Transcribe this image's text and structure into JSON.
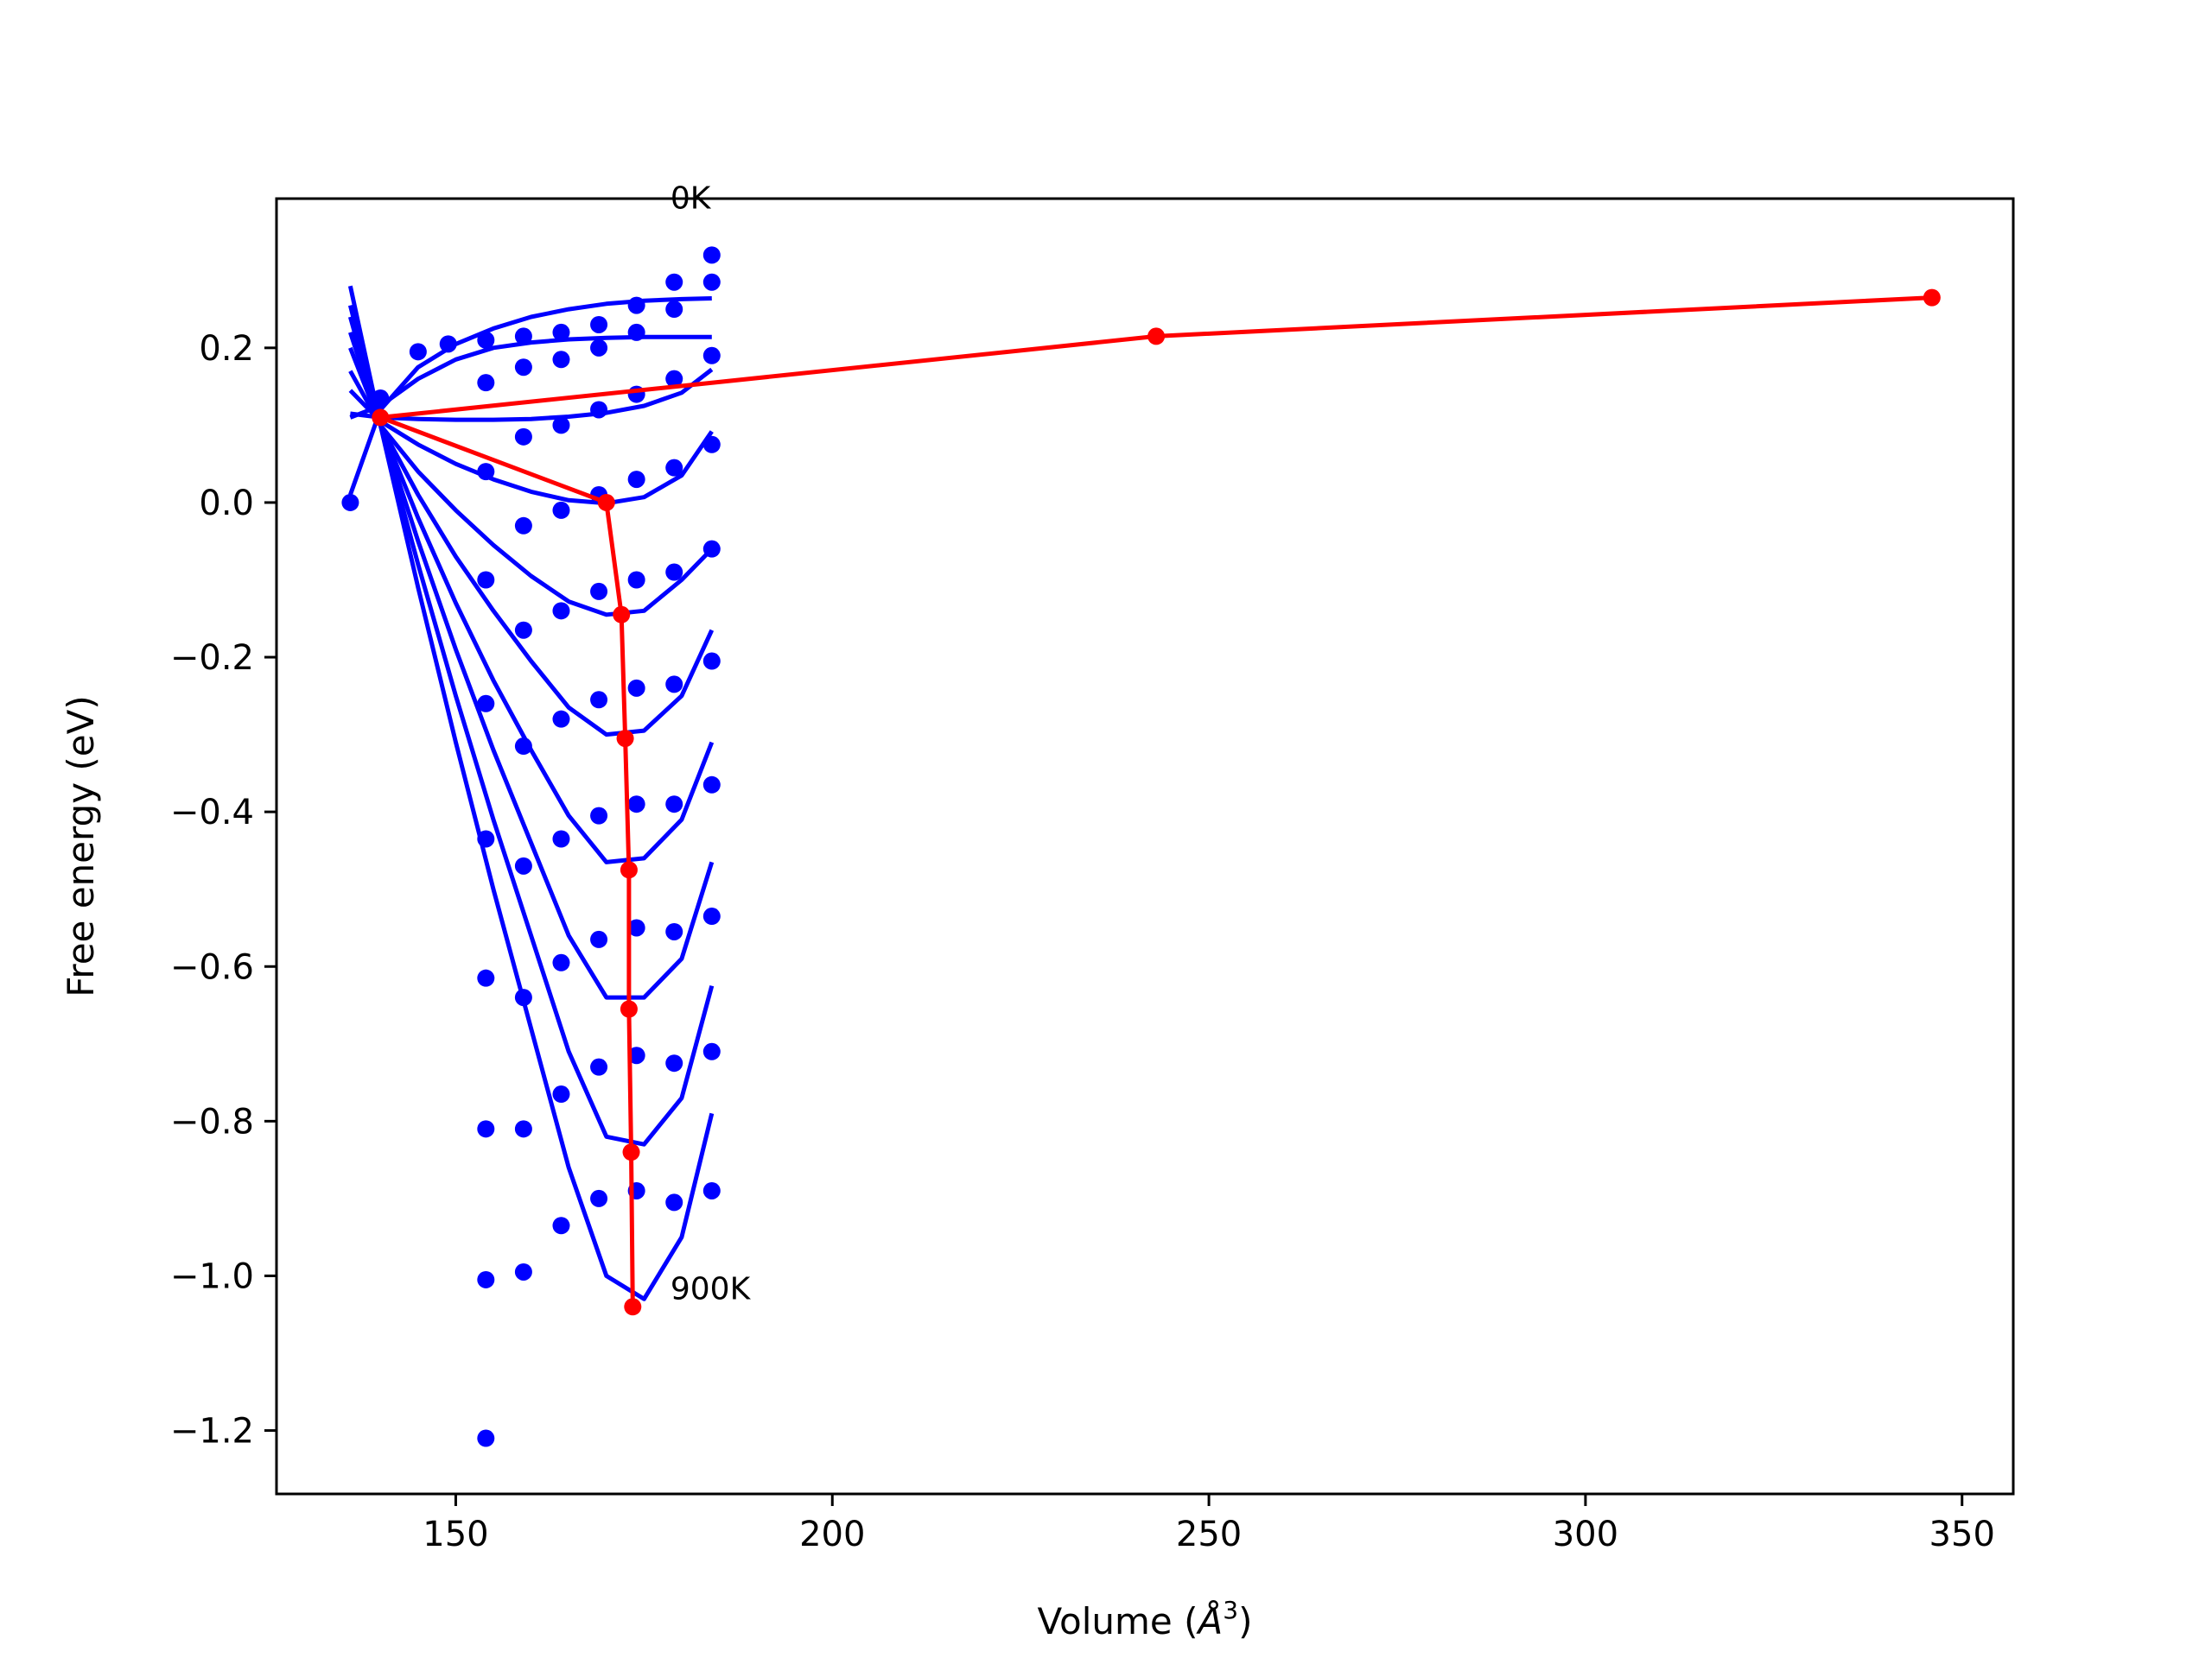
{
  "chart_data": {
    "type": "line",
    "xlabel_prefix": "Volume (",
    "xlabel_unit": "Å",
    "xlabel_exp": "3",
    "xlabel_suffix": ")",
    "ylabel": "Free energy (eV)",
    "xlim": [
      126.2,
      356.8
    ],
    "ylim": [
      -1.282,
      0.393
    ],
    "xticks": [
      150,
      200,
      250,
      300,
      350
    ],
    "xtick_labels": [
      "150",
      "200",
      "250",
      "300",
      "350"
    ],
    "yticks": [
      -1.2,
      -1.0,
      -0.8,
      -0.6,
      -0.4,
      -0.2,
      0.0,
      0.2
    ],
    "ytick_labels": [
      "−1.2",
      "−1.0",
      "−0.8",
      "−0.6",
      "−0.4",
      "−0.2",
      "0.0",
      "0.2"
    ],
    "grid": false,
    "colors": {
      "points": "#0000ff",
      "fits": "#0000ff",
      "minima": "#ff0000",
      "axes": "#000000"
    },
    "annotations": [
      {
        "text": "0K",
        "x": 178.5,
        "y": 0.38
      },
      {
        "text": "900K",
        "x": 178.5,
        "y": -1.03
      }
    ],
    "point_series": [
      {
        "x": [
          136,
          140,
          145,
          149,
          154,
          159,
          164,
          169,
          174,
          179,
          184
        ],
        "y": [
          0.0,
          0.135,
          0.195,
          0.205,
          0.21,
          0.215,
          0.22,
          0.23,
          0.255,
          0.285,
          0.32
        ]
      },
      {
        "x": [
          154,
          159,
          164,
          169,
          174,
          179,
          184
        ],
        "y": [
          0.155,
          0.175,
          0.185,
          0.2,
          0.22,
          0.25,
          0.285
        ]
      },
      {
        "x": [
          159,
          164,
          169,
          174,
          179,
          184
        ],
        "y": [
          0.085,
          0.1,
          0.12,
          0.14,
          0.16,
          0.19
        ]
      },
      {
        "x": [
          154,
          164,
          169,
          174,
          179,
          184
        ],
        "y": [
          0.04,
          -0.01,
          0.01,
          0.03,
          0.045,
          0.075
        ]
      },
      {
        "x": [
          154,
          159,
          169,
          174,
          179,
          184
        ],
        "y": [
          -0.1,
          -0.03,
          -0.115,
          -0.1,
          -0.09,
          -0.06
        ]
      },
      {
        "x": [
          154,
          159,
          164,
          169,
          174,
          179,
          184
        ],
        "y": [
          -0.26,
          -0.165,
          -0.14,
          -0.255,
          -0.24,
          -0.235,
          -0.205
        ]
      },
      {
        "x": [
          154,
          159,
          164,
          169,
          174,
          179,
          184
        ],
        "y": [
          -0.435,
          -0.315,
          -0.28,
          -0.405,
          -0.39,
          -0.39,
          -0.365
        ]
      },
      {
        "x": [
          154,
          159,
          164,
          169,
          174,
          179,
          184
        ],
        "y": [
          -0.615,
          -0.47,
          -0.435,
          -0.565,
          -0.55,
          -0.555,
          -0.535
        ]
      },
      {
        "x": [
          154,
          159,
          164,
          169,
          174,
          179,
          184
        ],
        "y": [
          -0.81,
          -0.64,
          -0.595,
          -0.73,
          -0.715,
          -0.725,
          -0.71
        ]
      },
      {
        "x": [
          154,
          159,
          164,
          169,
          174,
          179,
          184
        ],
        "y": [
          -1.005,
          -0.81,
          -0.765,
          -0.9,
          -0.89,
          -0.905,
          -0.89
        ]
      },
      {
        "x": [
          154,
          159,
          164
        ],
        "y": [
          -1.21,
          -0.995,
          -0.935
        ]
      }
    ],
    "fit_curves": [
      {
        "x": [
          136,
          140,
          145,
          150,
          155,
          160,
          165,
          170,
          175,
          180,
          184
        ],
        "y": [
          0.01,
          0.12,
          0.175,
          0.205,
          0.225,
          0.24,
          0.25,
          0.257,
          0.261,
          0.263,
          0.264
        ]
      },
      {
        "x": [
          136,
          140,
          145,
          150,
          155,
          160,
          165,
          170,
          175,
          180,
          184
        ],
        "y": [
          0.11,
          0.125,
          0.16,
          0.185,
          0.2,
          0.207,
          0.211,
          0.213,
          0.214,
          0.214,
          0.214
        ]
      },
      {
        "x": [
          136,
          140,
          145,
          150,
          155,
          160,
          165,
          170,
          175,
          180,
          184
        ],
        "y": [
          0.115,
          0.11,
          0.108,
          0.107,
          0.107,
          0.108,
          0.111,
          0.116,
          0.125,
          0.142,
          0.172
        ]
      },
      {
        "x": [
          136,
          140,
          145,
          150,
          155,
          160,
          165,
          170,
          175,
          180,
          184
        ],
        "y": [
          0.145,
          0.105,
          0.075,
          0.05,
          0.03,
          0.014,
          0.003,
          -0.001,
          0.007,
          0.035,
          0.092
        ]
      },
      {
        "x": [
          136,
          140,
          145,
          150,
          155,
          160,
          165,
          170,
          175,
          180,
          184
        ],
        "y": [
          0.17,
          0.1,
          0.04,
          -0.01,
          -0.055,
          -0.095,
          -0.128,
          -0.145,
          -0.14,
          -0.1,
          -0.06
        ]
      },
      {
        "x": [
          136,
          140,
          145,
          150,
          155,
          160,
          165,
          170,
          175,
          180,
          184
        ],
        "y": [
          0.2,
          0.1,
          0.01,
          -0.07,
          -0.14,
          -0.205,
          -0.265,
          -0.3,
          -0.295,
          -0.25,
          -0.165
        ]
      },
      {
        "x": [
          136,
          140,
          145,
          150,
          155,
          160,
          165,
          170,
          175,
          180,
          184
        ],
        "y": [
          0.22,
          0.1,
          -0.02,
          -0.13,
          -0.23,
          -0.32,
          -0.405,
          -0.465,
          -0.46,
          -0.41,
          -0.31
        ]
      },
      {
        "x": [
          136,
          140,
          145,
          150,
          155,
          160,
          165,
          170,
          175,
          180,
          184
        ],
        "y": [
          0.24,
          0.1,
          -0.05,
          -0.19,
          -0.32,
          -0.44,
          -0.56,
          -0.64,
          -0.64,
          -0.59,
          -0.465
        ]
      },
      {
        "x": [
          136,
          140,
          145,
          150,
          155,
          160,
          165,
          170,
          175,
          180,
          184
        ],
        "y": [
          0.255,
          0.1,
          -0.08,
          -0.25,
          -0.41,
          -0.56,
          -0.71,
          -0.82,
          -0.83,
          -0.77,
          -0.625
        ]
      },
      {
        "x": [
          136,
          140,
          145,
          150,
          155,
          160,
          165,
          170,
          175,
          180,
          184
        ],
        "y": [
          0.28,
          0.1,
          -0.11,
          -0.31,
          -0.5,
          -0.68,
          -0.86,
          -1.0,
          -1.03,
          -0.95,
          -0.79
        ]
      }
    ],
    "minimum_path": {
      "x": [
        346,
        243,
        140,
        170,
        172,
        172.5,
        173,
        173,
        173.3,
        173.5
      ],
      "y": [
        0.265,
        0.215,
        0.11,
        0.0,
        -0.145,
        -0.305,
        -0.475,
        -0.655,
        -0.84,
        -1.04
      ]
    }
  }
}
